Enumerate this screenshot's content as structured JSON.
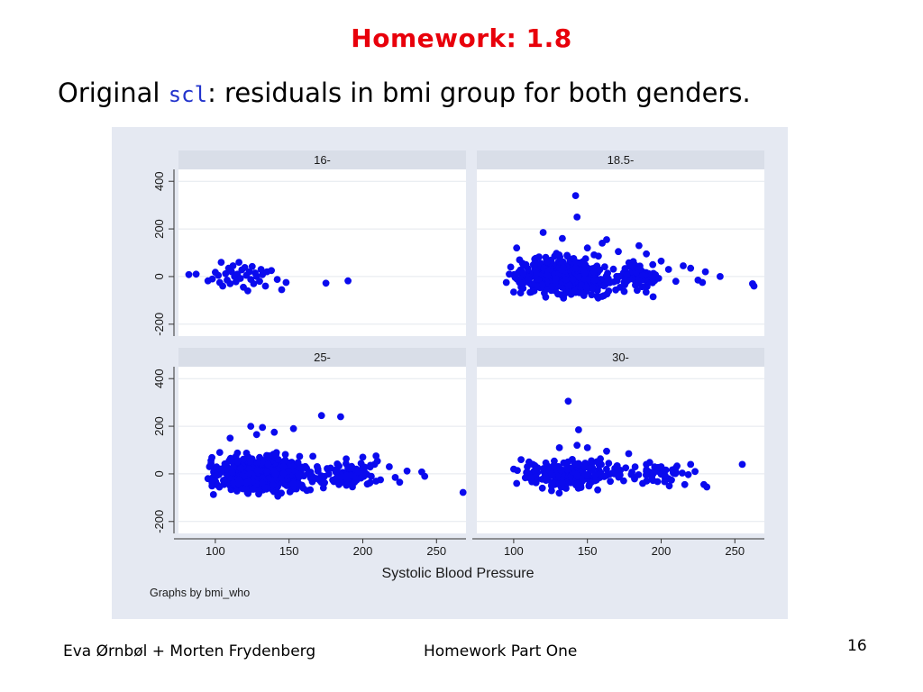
{
  "slide": {
    "title": "Homework: 1.8",
    "subtitle_before": "Original ",
    "subtitle_code": "scl",
    "subtitle_after": ": residuals in bmi group for both genders."
  },
  "footer": {
    "authors": "Eva Ørnbøl + Morten Frydenberg",
    "course": "Homework Part One",
    "page_number": "16"
  },
  "colors": {
    "title": "#e8000b",
    "code": "#2233cc",
    "marker": "#0a0aee",
    "plot_background": "#e5e9f2",
    "strip_background": "#d9dee8"
  },
  "chart_data": {
    "type": "scatter",
    "xlabel": "Systolic Blood Pressure",
    "note": "Graphs by bmi_who",
    "xlim": [
      75,
      270
    ],
    "ylim": [
      -250,
      450
    ],
    "x_ticks": [
      "100",
      "150",
      "200",
      "250"
    ],
    "x_tick_values": [
      100,
      150,
      200,
      250
    ],
    "y_ticks": [
      "-200",
      "0",
      "200",
      "400"
    ],
    "y_tick_values": [
      -200,
      0,
      200,
      400
    ],
    "panels": [
      {
        "name": "16-",
        "points": [
          [
            82,
            8
          ],
          [
            87,
            10
          ],
          [
            95,
            -18
          ],
          [
            98,
            -10
          ],
          [
            100,
            18
          ],
          [
            102,
            5
          ],
          [
            103,
            -25
          ],
          [
            104,
            60
          ],
          [
            105,
            -40
          ],
          [
            107,
            12
          ],
          [
            108,
            -15
          ],
          [
            109,
            35
          ],
          [
            110,
            -30
          ],
          [
            111,
            20
          ],
          [
            112,
            45
          ],
          [
            113,
            0
          ],
          [
            114,
            -22
          ],
          [
            115,
            10
          ],
          [
            116,
            60
          ],
          [
            117,
            -8
          ],
          [
            118,
            28
          ],
          [
            119,
            -45
          ],
          [
            120,
            38
          ],
          [
            121,
            5
          ],
          [
            122,
            -60
          ],
          [
            123,
            20
          ],
          [
            124,
            -12
          ],
          [
            125,
            42
          ],
          [
            126,
            -30
          ],
          [
            127,
            15
          ],
          [
            128,
            0
          ],
          [
            130,
            -20
          ],
          [
            131,
            30
          ],
          [
            132,
            8
          ],
          [
            134,
            -40
          ],
          [
            135,
            20
          ],
          [
            138,
            25
          ],
          [
            142,
            -12
          ],
          [
            145,
            -55
          ],
          [
            148,
            -25
          ],
          [
            175,
            -28
          ],
          [
            190,
            -18
          ]
        ]
      },
      {
        "name": "18.5-",
        "points": [
          [
            142,
            340
          ],
          [
            143,
            250
          ],
          [
            120,
            185
          ],
          [
            133,
            160
          ],
          [
            163,
            155
          ],
          [
            160,
            140
          ],
          [
            150,
            120
          ],
          [
            171,
            105
          ],
          [
            185,
            130
          ],
          [
            190,
            95
          ],
          [
            95,
            -25
          ],
          [
            97,
            10
          ],
          [
            98,
            40
          ],
          [
            100,
            -65
          ],
          [
            102,
            120
          ],
          [
            104,
            70
          ],
          [
            105,
            -45
          ],
          [
            200,
            65
          ],
          [
            205,
            30
          ],
          [
            210,
            -20
          ],
          [
            215,
            45
          ],
          [
            220,
            35
          ],
          [
            225,
            -15
          ],
          [
            228,
            -25
          ],
          [
            230,
            20
          ],
          [
            240,
            0
          ],
          [
            262,
            -30
          ],
          [
            263,
            -40
          ]
        ],
        "clusters": [
          {
            "n": 460,
            "x_min": 97,
            "x_max": 188,
            "x_mean": 133,
            "y_spread": 50
          },
          {
            "n": 80,
            "x_min": 160,
            "x_max": 210,
            "x_mean": 182,
            "y_spread": 38
          }
        ]
      },
      {
        "name": "25-",
        "points": [
          [
            172,
            245
          ],
          [
            185,
            240
          ],
          [
            124,
            200
          ],
          [
            132,
            195
          ],
          [
            153,
            190
          ],
          [
            140,
            175
          ],
          [
            128,
            165
          ],
          [
            110,
            150
          ],
          [
            95,
            -20
          ],
          [
            96,
            30
          ],
          [
            98,
            -45
          ],
          [
            100,
            25
          ],
          [
            103,
            90
          ],
          [
            200,
            70
          ],
          [
            208,
            40
          ],
          [
            212,
            -25
          ],
          [
            218,
            30
          ],
          [
            222,
            -15
          ],
          [
            225,
            -35
          ],
          [
            230,
            12
          ],
          [
            240,
            8
          ],
          [
            242,
            -10
          ],
          [
            268,
            -78
          ]
        ],
        "clusters": [
          {
            "n": 600,
            "x_min": 97,
            "x_max": 190,
            "x_mean": 132,
            "y_spread": 50
          },
          {
            "n": 90,
            "x_min": 165,
            "x_max": 225,
            "x_mean": 190,
            "y_spread": 42
          }
        ]
      },
      {
        "name": "30-",
        "points": [
          [
            137,
            305
          ],
          [
            144,
            185
          ],
          [
            131,
            110
          ],
          [
            143,
            120
          ],
          [
            150,
            110
          ],
          [
            163,
            95
          ],
          [
            178,
            85
          ],
          [
            100,
            20
          ],
          [
            102,
            -40
          ],
          [
            105,
            60
          ],
          [
            190,
            40
          ],
          [
            200,
            30
          ],
          [
            205,
            -20
          ],
          [
            210,
            25
          ],
          [
            216,
            -45
          ],
          [
            220,
            40
          ],
          [
            223,
            10
          ],
          [
            229,
            -45
          ],
          [
            231,
            -55
          ],
          [
            255,
            40
          ]
        ],
        "clusters": [
          {
            "n": 260,
            "x_min": 102,
            "x_max": 195,
            "x_mean": 140,
            "y_spread": 42
          },
          {
            "n": 40,
            "x_min": 170,
            "x_max": 225,
            "x_mean": 195,
            "y_spread": 40
          }
        ]
      }
    ]
  }
}
